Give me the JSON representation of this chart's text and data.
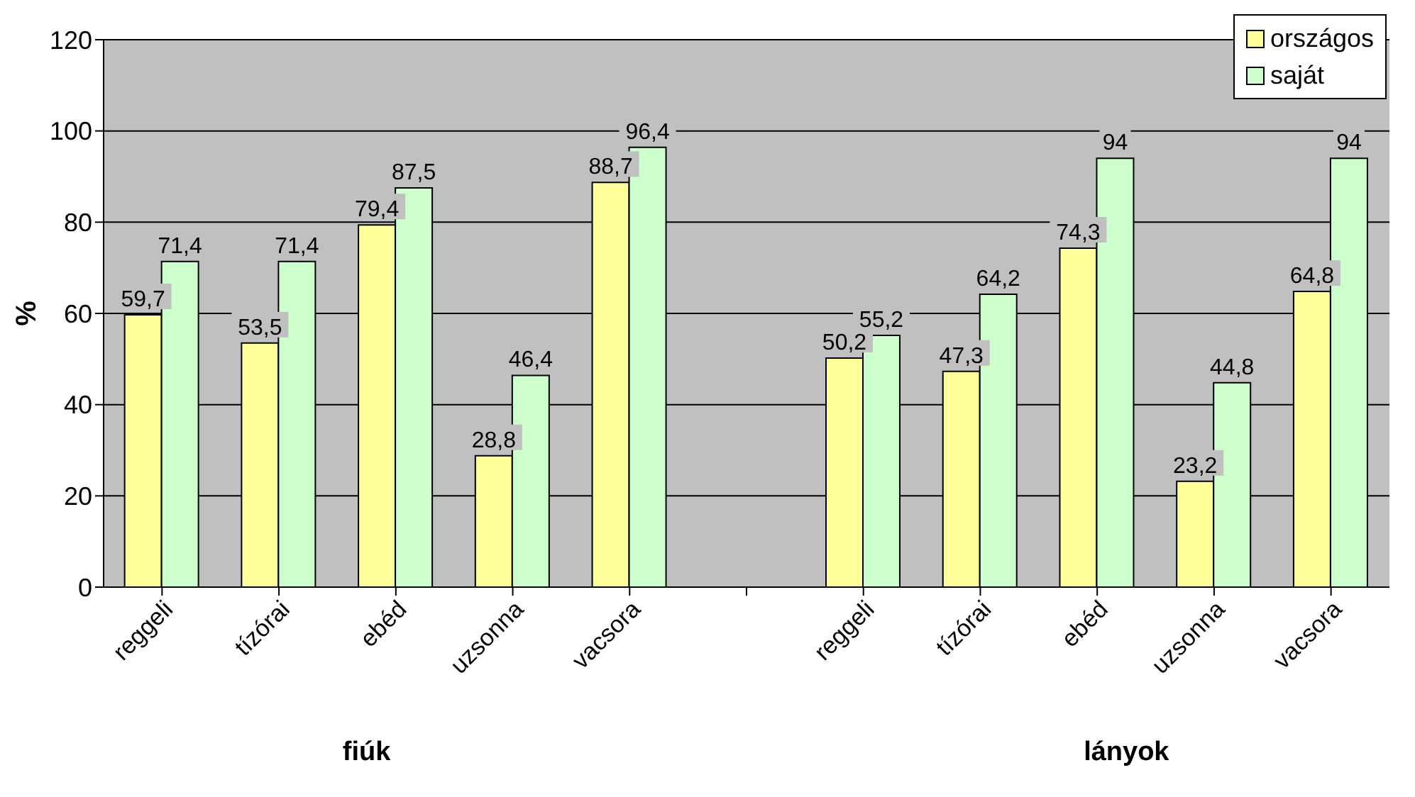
{
  "chart_data": {
    "type": "bar",
    "ylabel": "%",
    "categories": [
      "reggeli",
      "tízórai",
      "ebéd",
      "uzsonna",
      "vacsora",
      null,
      "reggeli",
      "tízórai",
      "ebéd",
      "uzsonna",
      "vacsora"
    ],
    "series": [
      {
        "name": "országos",
        "color": "#ffff99",
        "values": [
          59.7,
          53.5,
          79.4,
          28.8,
          88.7,
          null,
          50.2,
          47.3,
          74.3,
          23.2,
          64.8
        ],
        "value_labels": [
          "59,7",
          "53,5",
          "79,4",
          "28,8",
          "88,7",
          null,
          "50,2",
          "47,3",
          "74,3",
          "23,2",
          "64,8"
        ]
      },
      {
        "name": "saját",
        "color": "#ccffcc",
        "values": [
          71.4,
          71.4,
          87.5,
          46.4,
          96.4,
          null,
          55.2,
          64.2,
          94,
          44.8,
          94
        ],
        "value_labels": [
          "71,4",
          "71,4",
          "87,5",
          "46,4",
          "96,4",
          null,
          "55,2",
          "64,2",
          "94",
          "44,8",
          "94"
        ]
      }
    ],
    "annotations": [
      "fiúk",
      "lányok"
    ],
    "ylim": [
      0,
      120
    ],
    "yticks": [
      0,
      20,
      40,
      60,
      80,
      100,
      120
    ],
    "grid": "y",
    "legend": "top right"
  }
}
